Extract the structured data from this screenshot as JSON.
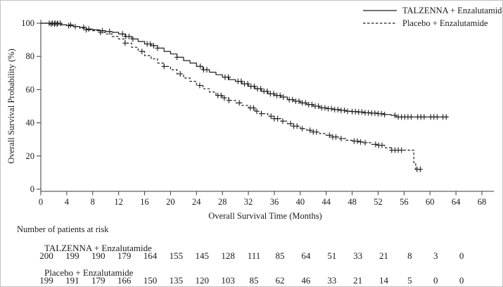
{
  "chart_data": {
    "type": "line",
    "subtype": "kaplan-meier-step",
    "title": "",
    "xlabel": "Overall Survival Time (Months)",
    "ylabel": "Overall Survival Probability (%)",
    "xlim": [
      0,
      68
    ],
    "ylim": [
      0,
      100
    ],
    "x_ticks": [
      0,
      4,
      8,
      12,
      16,
      20,
      24,
      28,
      32,
      36,
      40,
      44,
      48,
      52,
      56,
      60,
      64,
      68
    ],
    "y_ticks": [
      0,
      20,
      40,
      60,
      80,
      100
    ],
    "grid": false,
    "legend_position": "top-right",
    "line_color": "#1f1f1f",
    "series": [
      {
        "name": "TALZENNA + Enzalutamide",
        "line_style": "solid",
        "points": [
          [
            0,
            100
          ],
          [
            1,
            100
          ],
          [
            3.2,
            99
          ],
          [
            4,
            98.5
          ],
          [
            5,
            98
          ],
          [
            6,
            97.5
          ],
          [
            7,
            96.5
          ],
          [
            8,
            96
          ],
          [
            9,
            95.5
          ],
          [
            10,
            95
          ],
          [
            11,
            94.5
          ],
          [
            12,
            93.5
          ],
          [
            13,
            92
          ],
          [
            14,
            90.5
          ],
          [
            15,
            89
          ],
          [
            16,
            87.5
          ],
          [
            17,
            86.5
          ],
          [
            18,
            85
          ],
          [
            19,
            83
          ],
          [
            20,
            81.5
          ],
          [
            21,
            79.5
          ],
          [
            22,
            77.5
          ],
          [
            23,
            76
          ],
          [
            24,
            74
          ],
          [
            25,
            72
          ],
          [
            26,
            70.5
          ],
          [
            27,
            69
          ],
          [
            28,
            67.5
          ],
          [
            29,
            66
          ],
          [
            30,
            65
          ],
          [
            31,
            63.5
          ],
          [
            32,
            62
          ],
          [
            33,
            60.5
          ],
          [
            34,
            59
          ],
          [
            35,
            57.5
          ],
          [
            36,
            56.5
          ],
          [
            37,
            55.5
          ],
          [
            38,
            54
          ],
          [
            39,
            53
          ],
          [
            40,
            52
          ],
          [
            41,
            51
          ],
          [
            42,
            50
          ],
          [
            43,
            49
          ],
          [
            44,
            48.5
          ],
          [
            45,
            48
          ],
          [
            46,
            47.5
          ],
          [
            47,
            47
          ],
          [
            48,
            46.8
          ],
          [
            49,
            46.5
          ],
          [
            50,
            46
          ],
          [
            51,
            45.8
          ],
          [
            52,
            45.5
          ],
          [
            53,
            45
          ],
          [
            54,
            44.5
          ],
          [
            54.8,
            43.5
          ],
          [
            62.8,
            43.5
          ]
        ],
        "censor_times": [
          1.3,
          1.8,
          2.2,
          2.6,
          3.0,
          4.3,
          5.3,
          6.6,
          7.4,
          9.5,
          10.6,
          12.6,
          13.1,
          13.6,
          14.2,
          16.4,
          16.9,
          17.4,
          18.0,
          21.0,
          24.6,
          25.1,
          25.6,
          28.4,
          28.9,
          30.4,
          30.9,
          31.4,
          31.9,
          32.4,
          32.9,
          33.4,
          33.9,
          34.4,
          34.9,
          35.4,
          35.9,
          36.4,
          36.9,
          37.4,
          38.3,
          38.8,
          39.3,
          39.8,
          40.3,
          40.8,
          41.3,
          41.8,
          42.3,
          42.8,
          43.3,
          43.8,
          44.3,
          44.8,
          45.3,
          45.8,
          46.3,
          46.8,
          47.3,
          48.0,
          48.5,
          49.0,
          49.5,
          50.0,
          50.5,
          51.0,
          51.5,
          52.0,
          52.5,
          53.0,
          54.6,
          55.1,
          55.6,
          56.1,
          56.6,
          57.1,
          58.1,
          58.6,
          59.1,
          60.1,
          60.6,
          61.1,
          62.0,
          62.5
        ]
      },
      {
        "name": "Placebo + Enzalutamide",
        "line_style": "dashed",
        "points": [
          [
            0,
            100
          ],
          [
            1,
            99.5
          ],
          [
            3,
            99
          ],
          [
            5,
            98
          ],
          [
            6,
            97
          ],
          [
            7,
            96
          ],
          [
            8,
            95.5
          ],
          [
            9,
            94.5
          ],
          [
            10,
            93.5
          ],
          [
            11,
            92
          ],
          [
            12,
            90.5
          ],
          [
            13,
            88
          ],
          [
            14,
            85.5
          ],
          [
            15,
            83
          ],
          [
            16,
            80.5
          ],
          [
            17,
            78.5
          ],
          [
            18,
            76
          ],
          [
            19,
            74
          ],
          [
            20,
            72
          ],
          [
            21,
            69.5
          ],
          [
            22,
            67
          ],
          [
            23,
            65
          ],
          [
            24,
            62.5
          ],
          [
            25,
            60.5
          ],
          [
            26,
            58.5
          ],
          [
            27,
            56.5
          ],
          [
            28,
            55
          ],
          [
            29,
            53.5
          ],
          [
            30,
            52
          ],
          [
            31,
            50.5
          ],
          [
            32,
            49
          ],
          [
            33,
            47
          ],
          [
            34,
            45.5
          ],
          [
            35,
            44
          ],
          [
            36,
            42.5
          ],
          [
            37,
            41
          ],
          [
            38,
            39.5
          ],
          [
            39,
            38
          ],
          [
            40,
            36.5
          ],
          [
            41,
            35.5
          ],
          [
            42,
            34.5
          ],
          [
            43,
            33.5
          ],
          [
            44,
            32.5
          ],
          [
            45,
            31.5
          ],
          [
            46,
            30.5
          ],
          [
            47,
            29.5
          ],
          [
            48,
            29
          ],
          [
            49,
            28.5
          ],
          [
            50,
            28
          ],
          [
            51,
            27
          ],
          [
            52,
            26.5
          ],
          [
            53,
            25
          ],
          [
            54,
            23.5
          ],
          [
            57.2,
            23.5
          ],
          [
            57.5,
            16
          ],
          [
            57.8,
            12
          ],
          [
            58.8,
            12
          ]
        ],
        "censor_times": [
          1.6,
          2.1,
          2.5,
          4.6,
          7.0,
          9.2,
          13.0,
          15.6,
          19.0,
          21.5,
          24.5,
          27.3,
          27.8,
          28.3,
          29.0,
          30.6,
          32.3,
          32.8,
          33.3,
          34.0,
          35.5,
          36.0,
          36.5,
          37.3,
          38.5,
          39.0,
          39.5,
          40.3,
          41.5,
          42.0,
          42.5,
          44.5,
          45.0,
          45.5,
          46.3,
          48.3,
          48.8,
          49.3,
          50.0,
          51.6,
          52.1,
          52.6,
          54.1,
          54.6,
          55.1,
          55.6,
          58.0,
          58.5
        ]
      }
    ]
  },
  "at_risk": {
    "heading": "Number of patients at risk",
    "times": [
      0,
      4,
      8,
      12,
      16,
      20,
      24,
      28,
      32,
      36,
      40,
      44,
      48,
      52,
      56,
      60,
      64
    ],
    "rows": [
      {
        "label": "TALZENNA + Enzalutamide",
        "counts": [
          200,
          199,
          190,
          179,
          164,
          155,
          145,
          128,
          111,
          85,
          64,
          51,
          33,
          21,
          8,
          3,
          0
        ]
      },
      {
        "label": "Placebo + Enzalutamide",
        "counts": [
          199,
          191,
          179,
          166,
          150,
          135,
          120,
          103,
          85,
          62,
          46,
          33,
          21,
          14,
          5,
          0,
          0
        ]
      }
    ]
  }
}
